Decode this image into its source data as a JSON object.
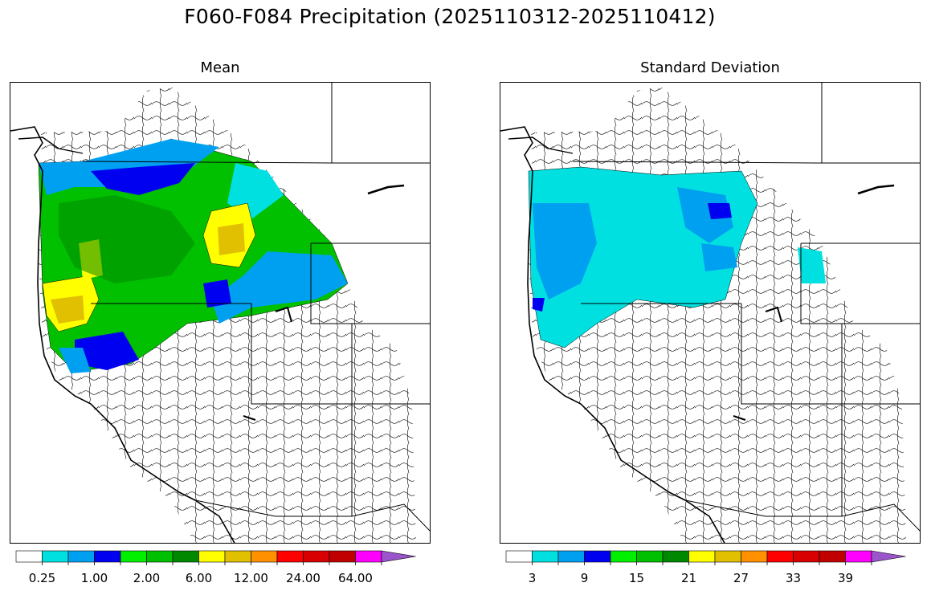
{
  "figure": {
    "title": "F060-F084 Precipitation (2025110312-2025110412)"
  },
  "panels": [
    {
      "title": "Mean",
      "colorbar": {
        "colors": [
          "#ffffff",
          "#00e0e0",
          "#00a0f0",
          "#0000f0",
          "#00f000",
          "#00c000",
          "#008800",
          "#ffff00",
          "#e0c000",
          "#ff9000",
          "#ff0000",
          "#d80000",
          "#c00000",
          "#ff00ff",
          "#9955c9"
        ],
        "tick_labels": [
          "0.25",
          "1.00",
          "2.00",
          "6.00",
          "12.00",
          "24.00",
          "64.00"
        ],
        "extend": "max"
      }
    },
    {
      "title": "Standard Deviation",
      "colorbar": {
        "colors": [
          "#ffffff",
          "#00e0e0",
          "#00a0f0",
          "#0000f0",
          "#00f000",
          "#00c000",
          "#008800",
          "#ffff00",
          "#e0c000",
          "#ff9000",
          "#ff0000",
          "#d80000",
          "#c00000",
          "#ff00ff",
          "#9955c9"
        ],
        "tick_labels": [
          "3",
          "9",
          "15",
          "21",
          "27",
          "33",
          "39"
        ],
        "extend": "max"
      }
    }
  ]
}
